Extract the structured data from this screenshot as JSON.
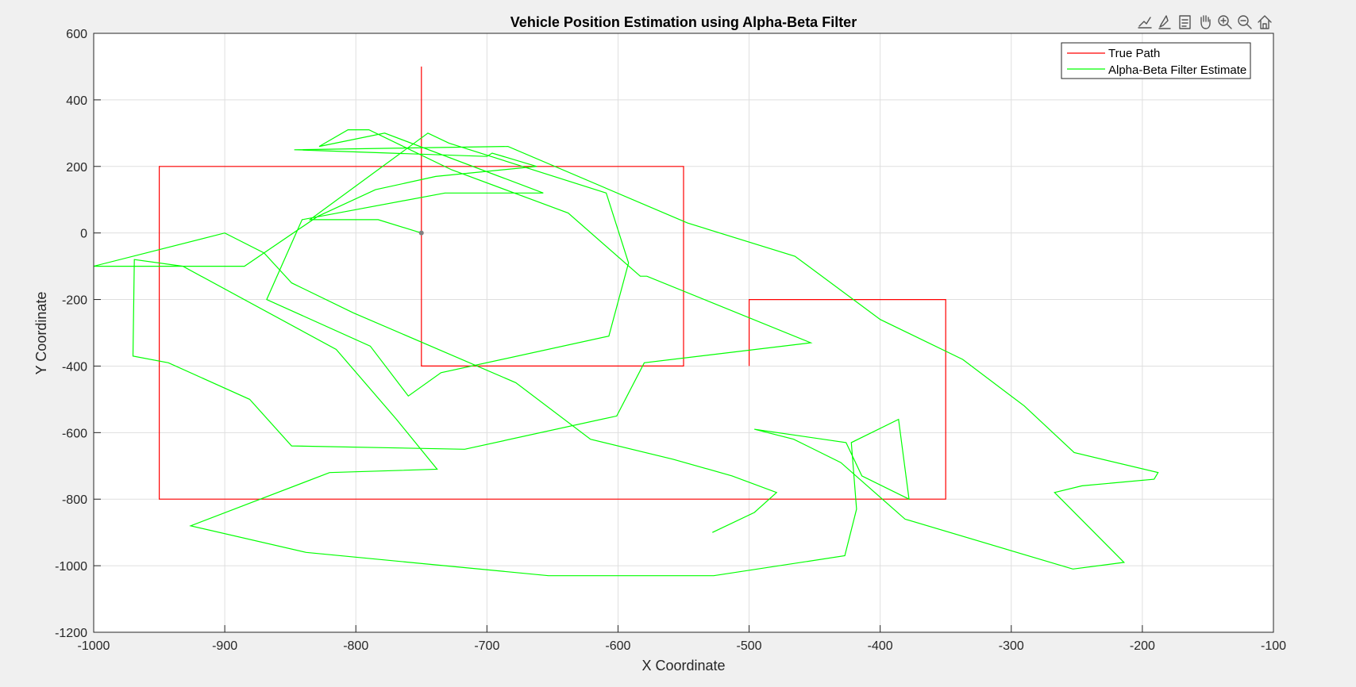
{
  "chart_data": {
    "type": "line",
    "title": "Vehicle Position Estimation using Alpha-Beta Filter",
    "xlabel": "X Coordinate",
    "ylabel": "Y Coordinate",
    "xlim": [
      -1000,
      -100
    ],
    "ylim": [
      -1200,
      600
    ],
    "xticks": [
      -1000,
      -900,
      -800,
      -700,
      -600,
      -500,
      -400,
      -300,
      -200,
      -100
    ],
    "yticks": [
      -1200,
      -1000,
      -800,
      -600,
      -400,
      -200,
      0,
      200,
      400,
      600
    ],
    "xtick_labels": [
      "-1000",
      "-900",
      "-800",
      "-700",
      "-600",
      "-500",
      "-400",
      "-300",
      "-200",
      "-100"
    ],
    "ytick_labels": [
      "-1200",
      "-1000",
      "-800",
      "-600",
      "-400",
      "-200",
      "0",
      "200",
      "400",
      "600"
    ],
    "grid": true,
    "legend_position": "top-right",
    "series": [
      {
        "name": "True Path",
        "color": "#ff0000",
        "x": [
          -750,
          -750,
          -550,
          -550,
          -950,
          -950,
          -350,
          -350,
          -500,
          -500
        ],
        "y": [
          500,
          -400,
          -400,
          200,
          200,
          -800,
          -800,
          -200,
          -200,
          -400
        ]
      },
      {
        "name": "Alpha-Beta Filter Estimate",
        "color": "#00ff00",
        "x": [
          -750,
          -783,
          -835,
          -745,
          -729,
          -609,
          -592,
          -607,
          -735,
          -760,
          -789,
          -868,
          -841,
          -732,
          -657,
          -778,
          -828,
          -806,
          -790,
          -727,
          -638,
          -583,
          -578,
          -453,
          -580,
          -601,
          -717,
          -849,
          -881,
          -943,
          -970,
          -969,
          -932,
          -815,
          -769,
          -738,
          -820,
          -926,
          -838,
          -653,
          -527,
          -427,
          -418,
          -422,
          -386,
          -378,
          -414,
          -426,
          -496,
          -466,
          -430,
          -381,
          -253,
          -214,
          -267,
          -246,
          -191,
          -188,
          -252,
          -290,
          -337,
          -400,
          -465,
          -547,
          -684,
          -847,
          -700,
          -696,
          -662,
          -739,
          -785,
          -829,
          -885,
          -1000,
          -900,
          -870,
          -849,
          -802,
          -678,
          -621,
          -558,
          -513,
          -479,
          -496,
          -528
        ],
        "y": [
          0,
          40,
          40,
          300,
          270,
          120,
          -90,
          -310,
          -420,
          -490,
          -340,
          -200,
          40,
          120,
          120,
          300,
          260,
          310,
          310,
          190,
          60,
          -130,
          -130,
          -330,
          -390,
          -550,
          -650,
          -640,
          -500,
          -390,
          -370,
          -80,
          -100,
          -350,
          -560,
          -710,
          -720,
          -880,
          -960,
          -1030,
          -1030,
          -970,
          -830,
          -630,
          -560,
          -800,
          -730,
          -630,
          -590,
          -620,
          -690,
          -860,
          -1010,
          -990,
          -780,
          -760,
          -740,
          -720,
          -660,
          -520,
          -380,
          -260,
          -70,
          30,
          260,
          250,
          230,
          240,
          200,
          170,
          130,
          50,
          -100,
          -100,
          0,
          -60,
          -150,
          -240,
          -450,
          -620,
          -680,
          -730,
          -780,
          -840,
          -900
        ]
      }
    ]
  },
  "toolbar": {
    "icons": [
      "export-icon",
      "brush-icon",
      "datatips-icon",
      "pan-icon",
      "zoom-in-icon",
      "zoom-out-icon",
      "home-icon"
    ]
  }
}
